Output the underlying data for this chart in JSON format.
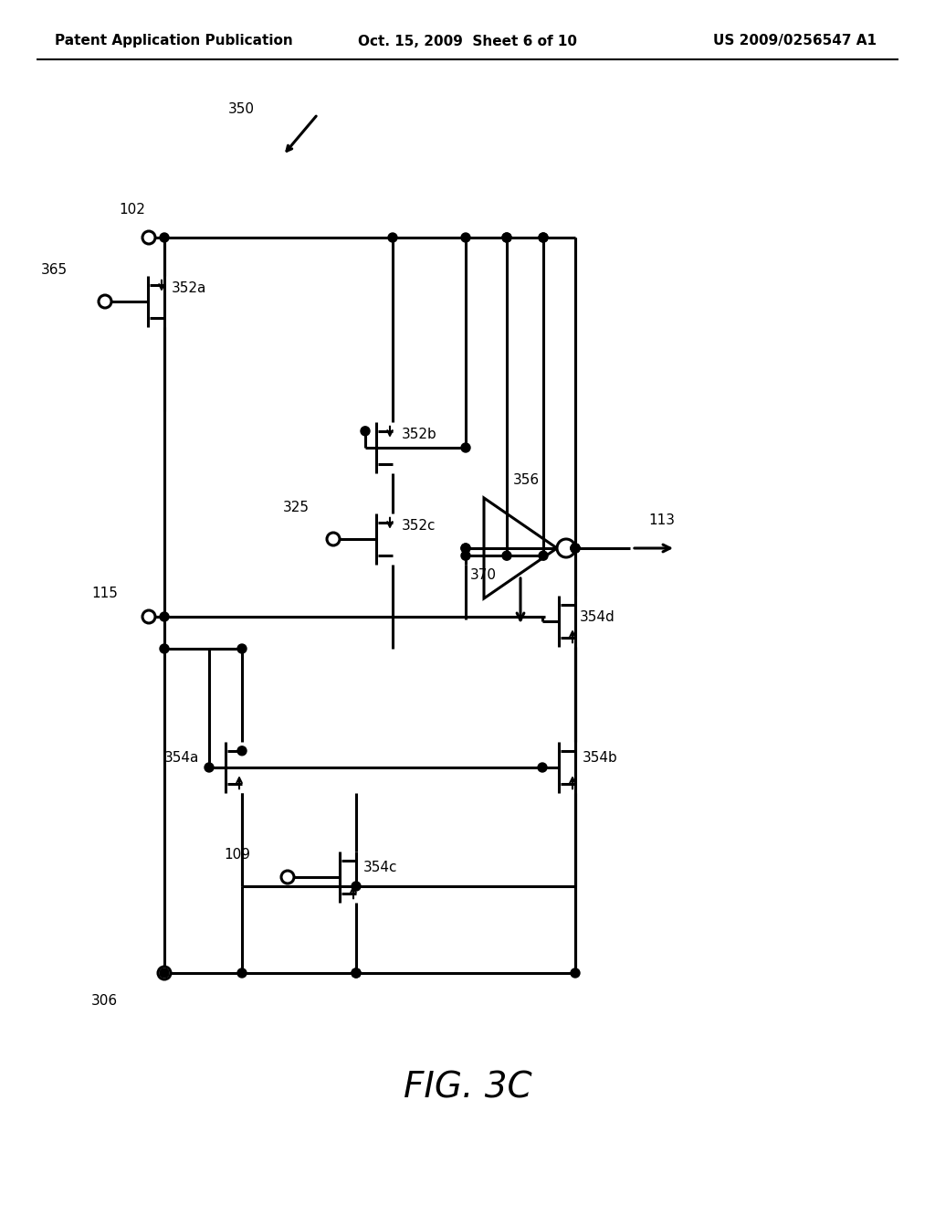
{
  "title": "FIG. 3C",
  "header_left": "Patent Application Publication",
  "header_center": "Oct. 15, 2009  Sheet 6 of 10",
  "header_right": "US 2009/0256547 A1",
  "bg_color": "#ffffff",
  "line_color": "#000000",
  "lw": 2.2,
  "lw_thin": 1.5,
  "label_fontsize": 11,
  "header_fontsize": 11,
  "title_fontsize": 28
}
